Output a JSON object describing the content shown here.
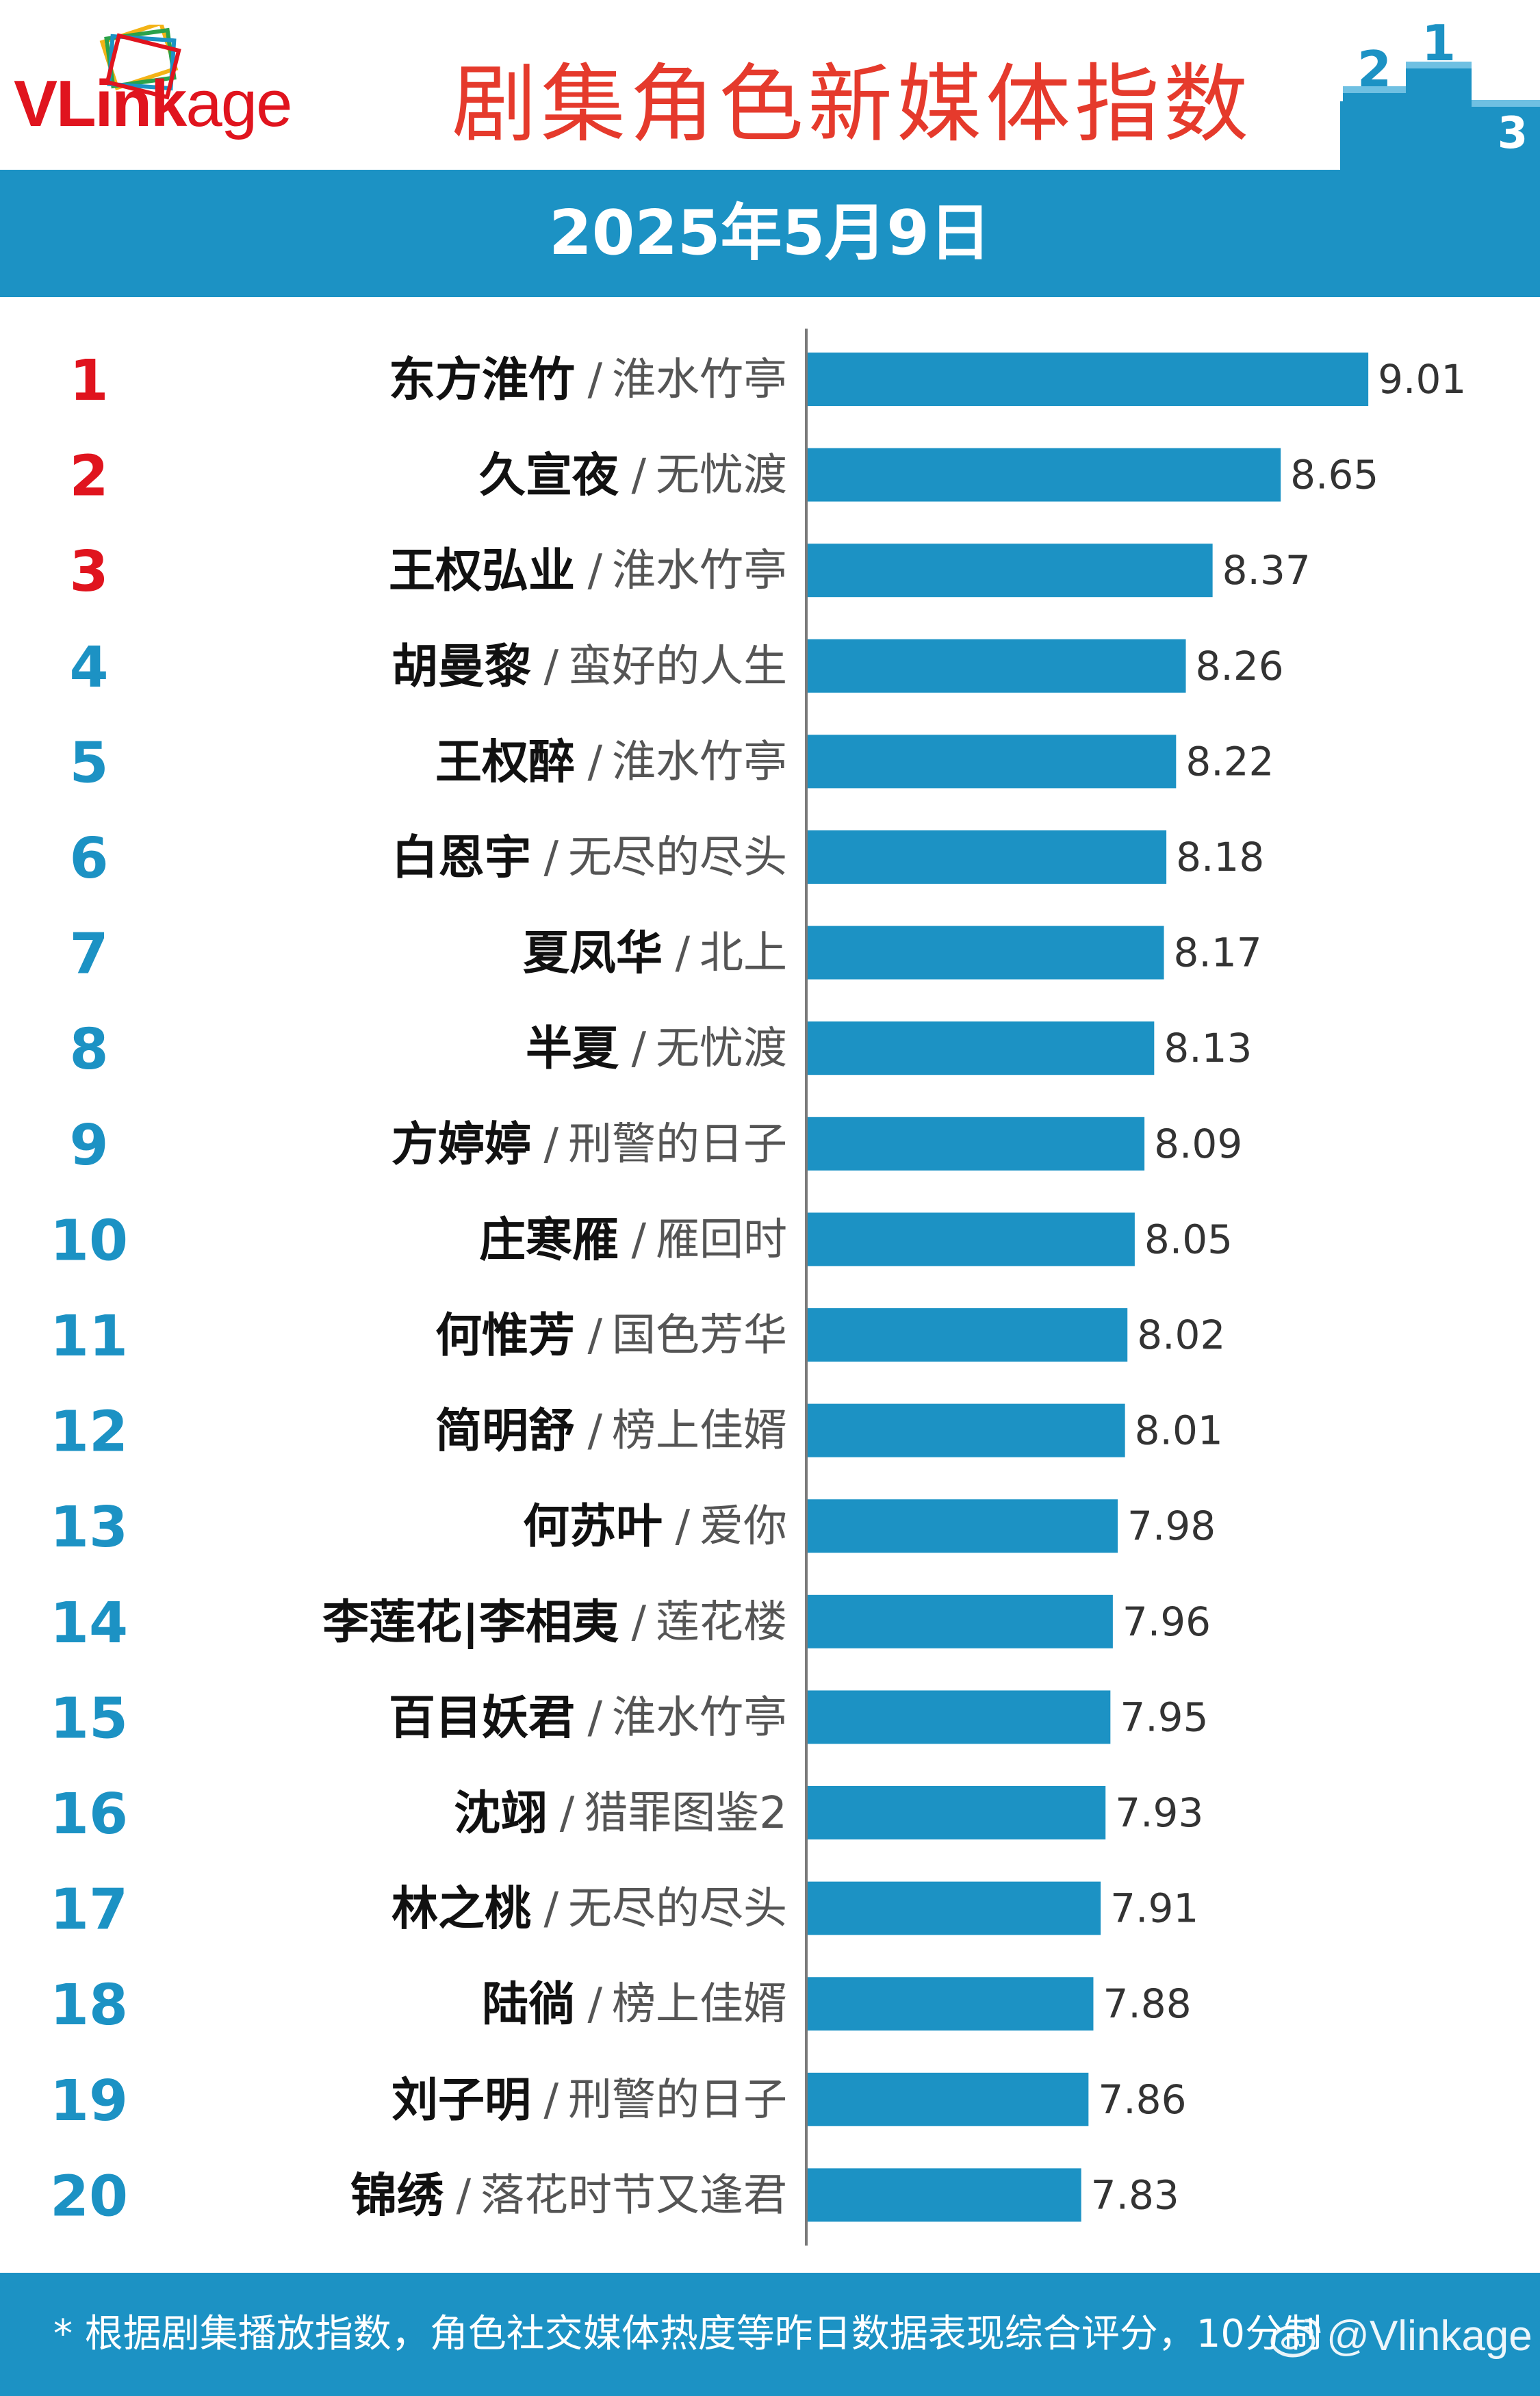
{
  "header": {
    "logo": {
      "v": "V",
      "l": "L",
      "rest": "ink",
      "age": "age"
    },
    "title": "剧集角色新媒体指数",
    "date": "2025年5月9日",
    "podium_numbers": [
      "2",
      "1",
      "3"
    ]
  },
  "colors": {
    "accent_blue": "#1c92c4",
    "title_red": "#e53a2c",
    "top3_rank_red": "#e0141e"
  },
  "chart_data": {
    "type": "bar",
    "orientation": "horizontal",
    "xlim": [
      6.7,
      9.35
    ],
    "ranks": [
      "1",
      "2",
      "3",
      "4",
      "5",
      "6",
      "7",
      "8",
      "9",
      "10",
      "11",
      "12",
      "13",
      "14",
      "15",
      "16",
      "17",
      "18",
      "19",
      "20"
    ],
    "roles": [
      "东方淮竹",
      "久宣夜",
      "王权弘业",
      "胡曼黎",
      "王权醉",
      "白恩宇",
      "夏凤华",
      "半夏",
      "方婷婷",
      "庄寒雁",
      "何惟芳",
      "简明舒",
      "何苏叶",
      "李莲花|李相夷",
      "百目妖君",
      "沈翊",
      "林之桃",
      "陆徜",
      "刘子明",
      "锦绣"
    ],
    "shows": [
      "淮水竹亭",
      "无忧渡",
      "淮水竹亭",
      "蛮好的人生",
      "淮水竹亭",
      "无尽的尽头",
      "北上",
      "无忧渡",
      "刑警的日子",
      "雁回时",
      "国色芳华",
      "榜上佳婿",
      "爱你",
      "莲花楼",
      "淮水竹亭",
      "猎罪图鉴2",
      "无尽的尽头",
      "榜上佳婿",
      "刑警的日子",
      "落花时节又逢君"
    ],
    "values": [
      9.01,
      8.65,
      8.37,
      8.26,
      8.22,
      8.18,
      8.17,
      8.13,
      8.09,
      8.05,
      8.02,
      8.01,
      7.98,
      7.96,
      7.95,
      7.93,
      7.91,
      7.88,
      7.86,
      7.83
    ],
    "value_labels": [
      "9.01",
      "8.65",
      "8.37",
      "8.26",
      "8.22",
      "8.18",
      "8.17",
      "8.13",
      "8.09",
      "8.05",
      "8.02",
      "8.01",
      "7.98",
      "7.96",
      "7.95",
      "7.93",
      "7.91",
      "7.88",
      "7.86",
      "7.83"
    ],
    "separator": "/",
    "top_highlight_count": 3
  },
  "footer": {
    "note": "* 根据剧集播放指数，角色社交媒体热度等昨日数据表现综合评分，10分制",
    "watermark": "@Vlinkage"
  }
}
